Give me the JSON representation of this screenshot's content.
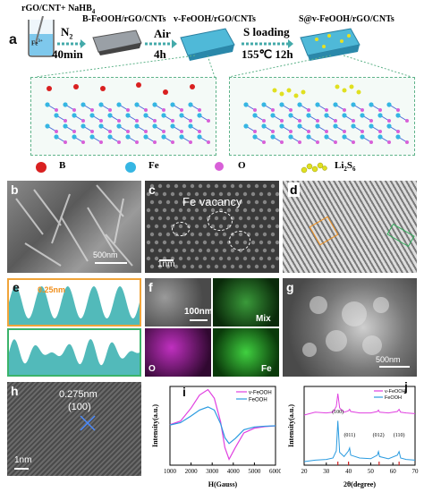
{
  "a": {
    "label": "a",
    "reagent": "rGO/CNT+ NaHB",
    "reagent_sub": "4",
    "beaker_label": "Fe",
    "beaker_sup": "3+",
    "step1_gas": "N",
    "step1_sub": "2",
    "step1_time": "40min",
    "prod1": "B-FeOOH/rGO/CNTs",
    "step2_gas": "Air",
    "step2_time": "4h",
    "prod2": "v-FeOOH/rGO/CNTs",
    "step3_top": "S loading",
    "step3_bottom": "155℃ 12h",
    "prod3": "S@v-FeOOH/rGO/CNTs",
    "legend": [
      {
        "sym": "B",
        "color": "#d92020"
      },
      {
        "sym": "Fe",
        "color": "#36b6e3"
      },
      {
        "sym": "O",
        "color": "#d860d8"
      },
      {
        "sym": "Li",
        "sub": "2",
        "rest": "S",
        "sub2": "6",
        "color": "#e0e020"
      }
    ]
  },
  "b": {
    "label": "b",
    "scale": "500nm"
  },
  "c": {
    "label": "c",
    "annotation": "Fe vacancy",
    "scale": "1nm"
  },
  "d": {
    "label": "d"
  },
  "e": {
    "label": "e",
    "annotation": "0.25nm"
  },
  "f": {
    "label": "f",
    "scale": "100nm",
    "mix": "Mix",
    "o": "O",
    "fe": "Fe"
  },
  "g": {
    "label": "g",
    "scale": "500nm"
  },
  "h": {
    "label": "h",
    "annotation_line1": "0.275nm",
    "annotation_line2": "(100)",
    "scale": "1nm"
  },
  "chart_data": [
    {
      "type": "line",
      "panel": "i",
      "ylabel": "Intensity(a.u.)",
      "xlabel": "H(Gauss)",
      "xlim": [
        1000,
        6000
      ],
      "x_ticks": [
        "1000",
        "2000",
        "3000",
        "4000",
        "5000",
        "6000"
      ],
      "legend": "top-right",
      "series": [
        {
          "name": "v-FeOOH",
          "color": "#e040e0",
          "x": [
            1000,
            1500,
            2000,
            2400,
            2800,
            3100,
            3400,
            3600,
            3800,
            4100,
            4500,
            5000,
            5500,
            6000
          ],
          "y": [
            0.03,
            0.12,
            0.45,
            0.78,
            0.92,
            0.7,
            0.1,
            -0.55,
            -0.85,
            -0.55,
            -0.18,
            -0.06,
            -0.02,
            0.0
          ]
        },
        {
          "name": "FeOOH",
          "color": "#2a9be0",
          "x": [
            1000,
            1500,
            2000,
            2400,
            2800,
            3100,
            3400,
            3600,
            3800,
            4100,
            4500,
            5000,
            5500,
            6000
          ],
          "y": [
            0.02,
            0.08,
            0.25,
            0.4,
            0.48,
            0.4,
            0.05,
            -0.3,
            -0.45,
            -0.32,
            -0.1,
            -0.03,
            -0.01,
            0.0
          ]
        }
      ]
    },
    {
      "type": "line",
      "panel": "j",
      "ylabel": "Intensity(a.u.)",
      "xlabel": "2θ(degree)",
      "xlim": [
        20,
        70
      ],
      "x_ticks": [
        "20",
        "30",
        "40",
        "50",
        "60",
        "70"
      ],
      "legend": "top-right",
      "peak_labels": [
        {
          "text": "(100)",
          "x": 35.2
        },
        {
          "text": "(011)",
          "x": 40.5
        },
        {
          "text": "(012)",
          "x": 53.5
        },
        {
          "text": "(110)",
          "x": 62.8
        }
      ],
      "reference_peaks": [
        35.2,
        40.0,
        53.8,
        62.8
      ],
      "series": [
        {
          "name": "v-FeOOH",
          "color": "#e040e0",
          "x": [
            20,
            25,
            30,
            33,
            34.5,
            35.2,
            36,
            38,
            40,
            40.5,
            41,
            45,
            50,
            53,
            53.5,
            54,
            58,
            62,
            62.8,
            63.5,
            66,
            70
          ],
          "y": [
            0.7,
            0.74,
            0.73,
            0.74,
            0.82,
            1.0,
            0.8,
            0.74,
            0.76,
            0.78,
            0.75,
            0.73,
            0.73,
            0.75,
            0.77,
            0.74,
            0.73,
            0.75,
            0.78,
            0.74,
            0.73,
            0.72
          ]
        },
        {
          "name": "FeOOH",
          "color": "#2a9be0",
          "x": [
            20,
            25,
            30,
            33,
            34.5,
            35.2,
            36,
            38,
            40,
            40.5,
            41,
            45,
            50,
            53,
            53.5,
            54,
            58,
            62,
            62.8,
            63.5,
            66,
            70
          ],
          "y": [
            0.05,
            0.07,
            0.08,
            0.1,
            0.2,
            0.62,
            0.18,
            0.12,
            0.2,
            0.24,
            0.14,
            0.1,
            0.09,
            0.14,
            0.19,
            0.12,
            0.09,
            0.14,
            0.19,
            0.1,
            0.08,
            0.07
          ]
        }
      ]
    }
  ]
}
